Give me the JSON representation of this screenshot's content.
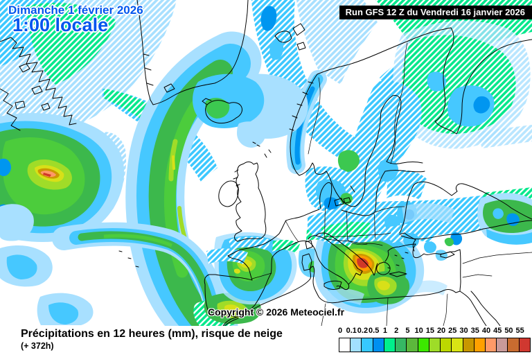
{
  "header": {
    "date_line": "Dimanche 1 février 2026",
    "time_line": "1:00 locale",
    "run_label": "Run GFS 12 Z du Vendredi 16 janvier 2026"
  },
  "map": {
    "copyright": "Copyright © 2026 Meteociel.fr",
    "region": "Europe / North Atlantic"
  },
  "footer": {
    "title": "Précipitations en 12 heures (mm), risque de neige",
    "step": "(+ 372h)"
  },
  "legend": {
    "labels": [
      "0",
      "0.1",
      "0.2",
      "0.5",
      "1",
      "2",
      "5",
      "10",
      "15",
      "20",
      "25",
      "30",
      "35",
      "40",
      "45",
      "50",
      "55"
    ],
    "colors": [
      "#FFFFFF",
      "#A2DFFF",
      "#36C8FF",
      "#0090F0",
      "#00F08C",
      "#36B864",
      "#5CB83C",
      "#3CE800",
      "#9EDC28",
      "#BCD800",
      "#D8E414",
      "#C89600",
      "#FFA000",
      "#FF9A68",
      "#C89A9A",
      "#C86C30",
      "#D03830"
    ]
  },
  "palette": {
    "date_text": "#0055EE",
    "run_bg": "#000000",
    "run_text": "#FFFFFF",
    "coastline": "#000000",
    "hatch_stripe": "#FFFFFF"
  }
}
